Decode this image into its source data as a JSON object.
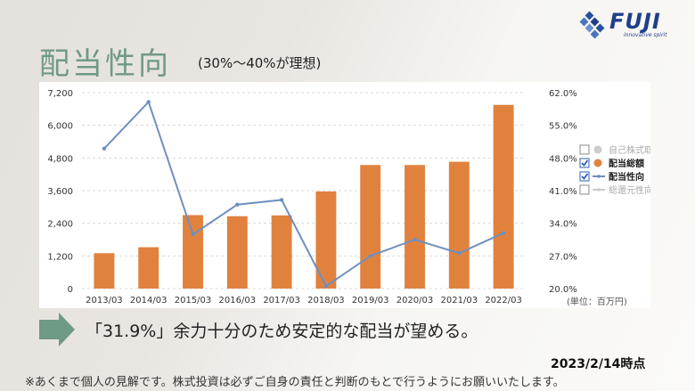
{
  "logo": {
    "text": "FUJI",
    "tagline": "innovative spirit"
  },
  "header": {
    "title": "配当性向",
    "subtitle": "(30%〜40%が理想)"
  },
  "chart_data": {
    "type": "bar",
    "categories": [
      "2013/03",
      "2014/03",
      "2015/03",
      "2016/03",
      "2017/03",
      "2018/03",
      "2019/03",
      "2020/03",
      "2021/03",
      "2022/03"
    ],
    "series": [
      {
        "name": "配当総額",
        "type": "bar",
        "axis": "left",
        "color": "#e0823e",
        "values": [
          1300,
          1520,
          2700,
          2660,
          2690,
          3570,
          4540,
          4540,
          4660,
          6750
        ]
      },
      {
        "name": "配当性向",
        "type": "line",
        "axis": "right",
        "color": "#6f8fbf",
        "values": [
          50.0,
          60.0,
          31.6,
          38.0,
          39.0,
          20.5,
          27.0,
          30.5,
          27.6,
          31.9
        ]
      }
    ],
    "yticks_left": [
      "7,200",
      "6,000",
      "4,800",
      "3,600",
      "2,400",
      "1,200",
      "0"
    ],
    "ylim_left": [
      0,
      7200
    ],
    "yticks_right": [
      "62.0%",
      "55.0%",
      "48.0%",
      "41.0%",
      "34.0%",
      "27.0%",
      "20.0%"
    ],
    "ylim_right": [
      20,
      62
    ],
    "unit_label": "(単位：百万円)",
    "legend": [
      {
        "label": "自己株式取得",
        "checked": false,
        "marker": "dot",
        "color": "#cccccc",
        "active": false
      },
      {
        "label": "配当総額",
        "checked": true,
        "marker": "dot",
        "color": "#e0823e",
        "active": true
      },
      {
        "label": "配当性向",
        "checked": true,
        "marker": "line",
        "color": "#6f8fbf",
        "active": true
      },
      {
        "label": "総還元性向",
        "checked": false,
        "marker": "line",
        "color": "#cccccc",
        "active": false
      }
    ],
    "legend_position": "right"
  },
  "callout": {
    "text": "「31.9%」余力十分のため安定的な配当が望める。"
  },
  "footer": {
    "as_of": "2023/2/14時点",
    "disclaimer": "※あくまで個人の見解です。株式投資は必ずご自身の責任と判断のもとで行うようにお願いいたします。"
  }
}
